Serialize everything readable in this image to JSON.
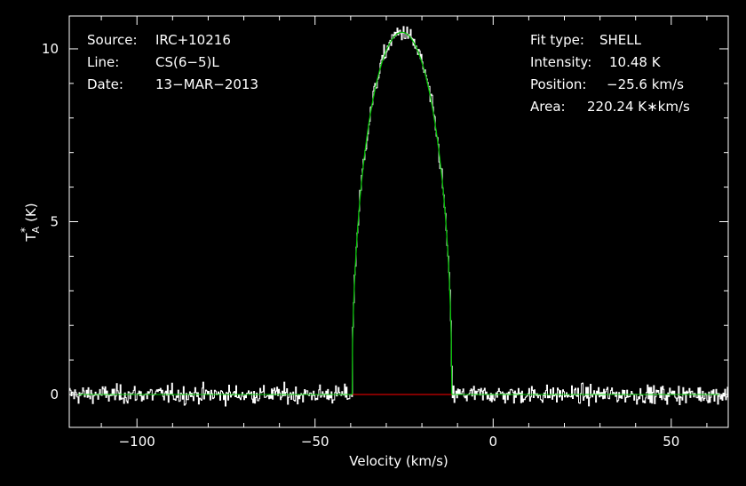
{
  "chart_data": {
    "type": "line",
    "xlabel": "Velocity (km/s)",
    "ylabel": "T",
    "ylabel_sub": "A",
    "ylabel_sup": "*",
    "ylabel_unit": "(K)",
    "xlim": [
      -119.0,
      66.0
    ],
    "ylim": [
      -0.95,
      10.95
    ],
    "xticks": [
      -100,
      -50,
      0,
      50
    ],
    "xtick_labels": [
      "−100",
      "−50",
      "0",
      "50"
    ],
    "yticks": [
      0,
      5,
      10
    ],
    "ytick_labels": [
      "0",
      "5",
      "10"
    ],
    "info_left": [
      {
        "key": "Source:",
        "value": "IRC+10216"
      },
      {
        "key": "Line:",
        "value": "CS(6−5)L"
      },
      {
        "key": "Date:",
        "value": "13−MAR−2013"
      }
    ],
    "info_right": [
      {
        "key": "Fit type:",
        "value": "SHELL"
      },
      {
        "key": "Intensity:",
        "value": "10.48 K"
      },
      {
        "key": "Position:",
        "value": "−25.6 km/s"
      },
      {
        "key": "Area:",
        "value": "220.24 K∗km/s"
      }
    ],
    "fit": {
      "model": "SHELL",
      "center": -25.6,
      "peak": 10.48,
      "half_width": 14.0,
      "horn_ratio": 0.0
    },
    "series": [
      {
        "role": "observed spectrum",
        "color": "#ffffff"
      },
      {
        "role": "fit",
        "color": "#00c800"
      },
      {
        "role": "fit baseline",
        "color": "#ff0000"
      }
    ],
    "noise_rms": 0.13,
    "colors": {
      "background": "#000000",
      "axes": "#ffffff",
      "text": "#ffffff"
    }
  }
}
